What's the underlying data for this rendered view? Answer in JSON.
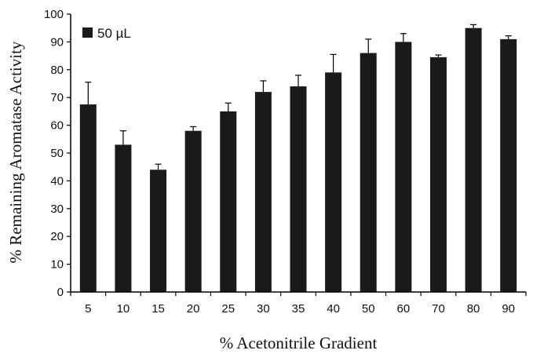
{
  "chart_data": {
    "type": "bar",
    "categories": [
      "5",
      "10",
      "15",
      "20",
      "25",
      "30",
      "35",
      "40",
      "50",
      "60",
      "70",
      "80",
      "90"
    ],
    "series": [
      {
        "name": "50 µL",
        "values": [
          67.5,
          53,
          44,
          58,
          65,
          72,
          74,
          79,
          86,
          90,
          84.5,
          95,
          91
        ],
        "error": [
          8,
          5,
          2,
          1.5,
          3,
          4,
          4,
          6.5,
          5,
          3,
          0.8,
          1.2,
          1.2
        ]
      }
    ],
    "xlabel": "% Acetonitrile Gradient",
    "ylabel": "% Remaining Aromatase Activity",
    "ylim": [
      0,
      100
    ],
    "yticks": [
      0,
      10,
      20,
      30,
      40,
      50,
      60,
      70,
      80,
      90,
      100
    ],
    "legend": "top-left",
    "grid": false,
    "colors": {
      "bar": "#1a1a1a",
      "axis": "#000000"
    }
  }
}
